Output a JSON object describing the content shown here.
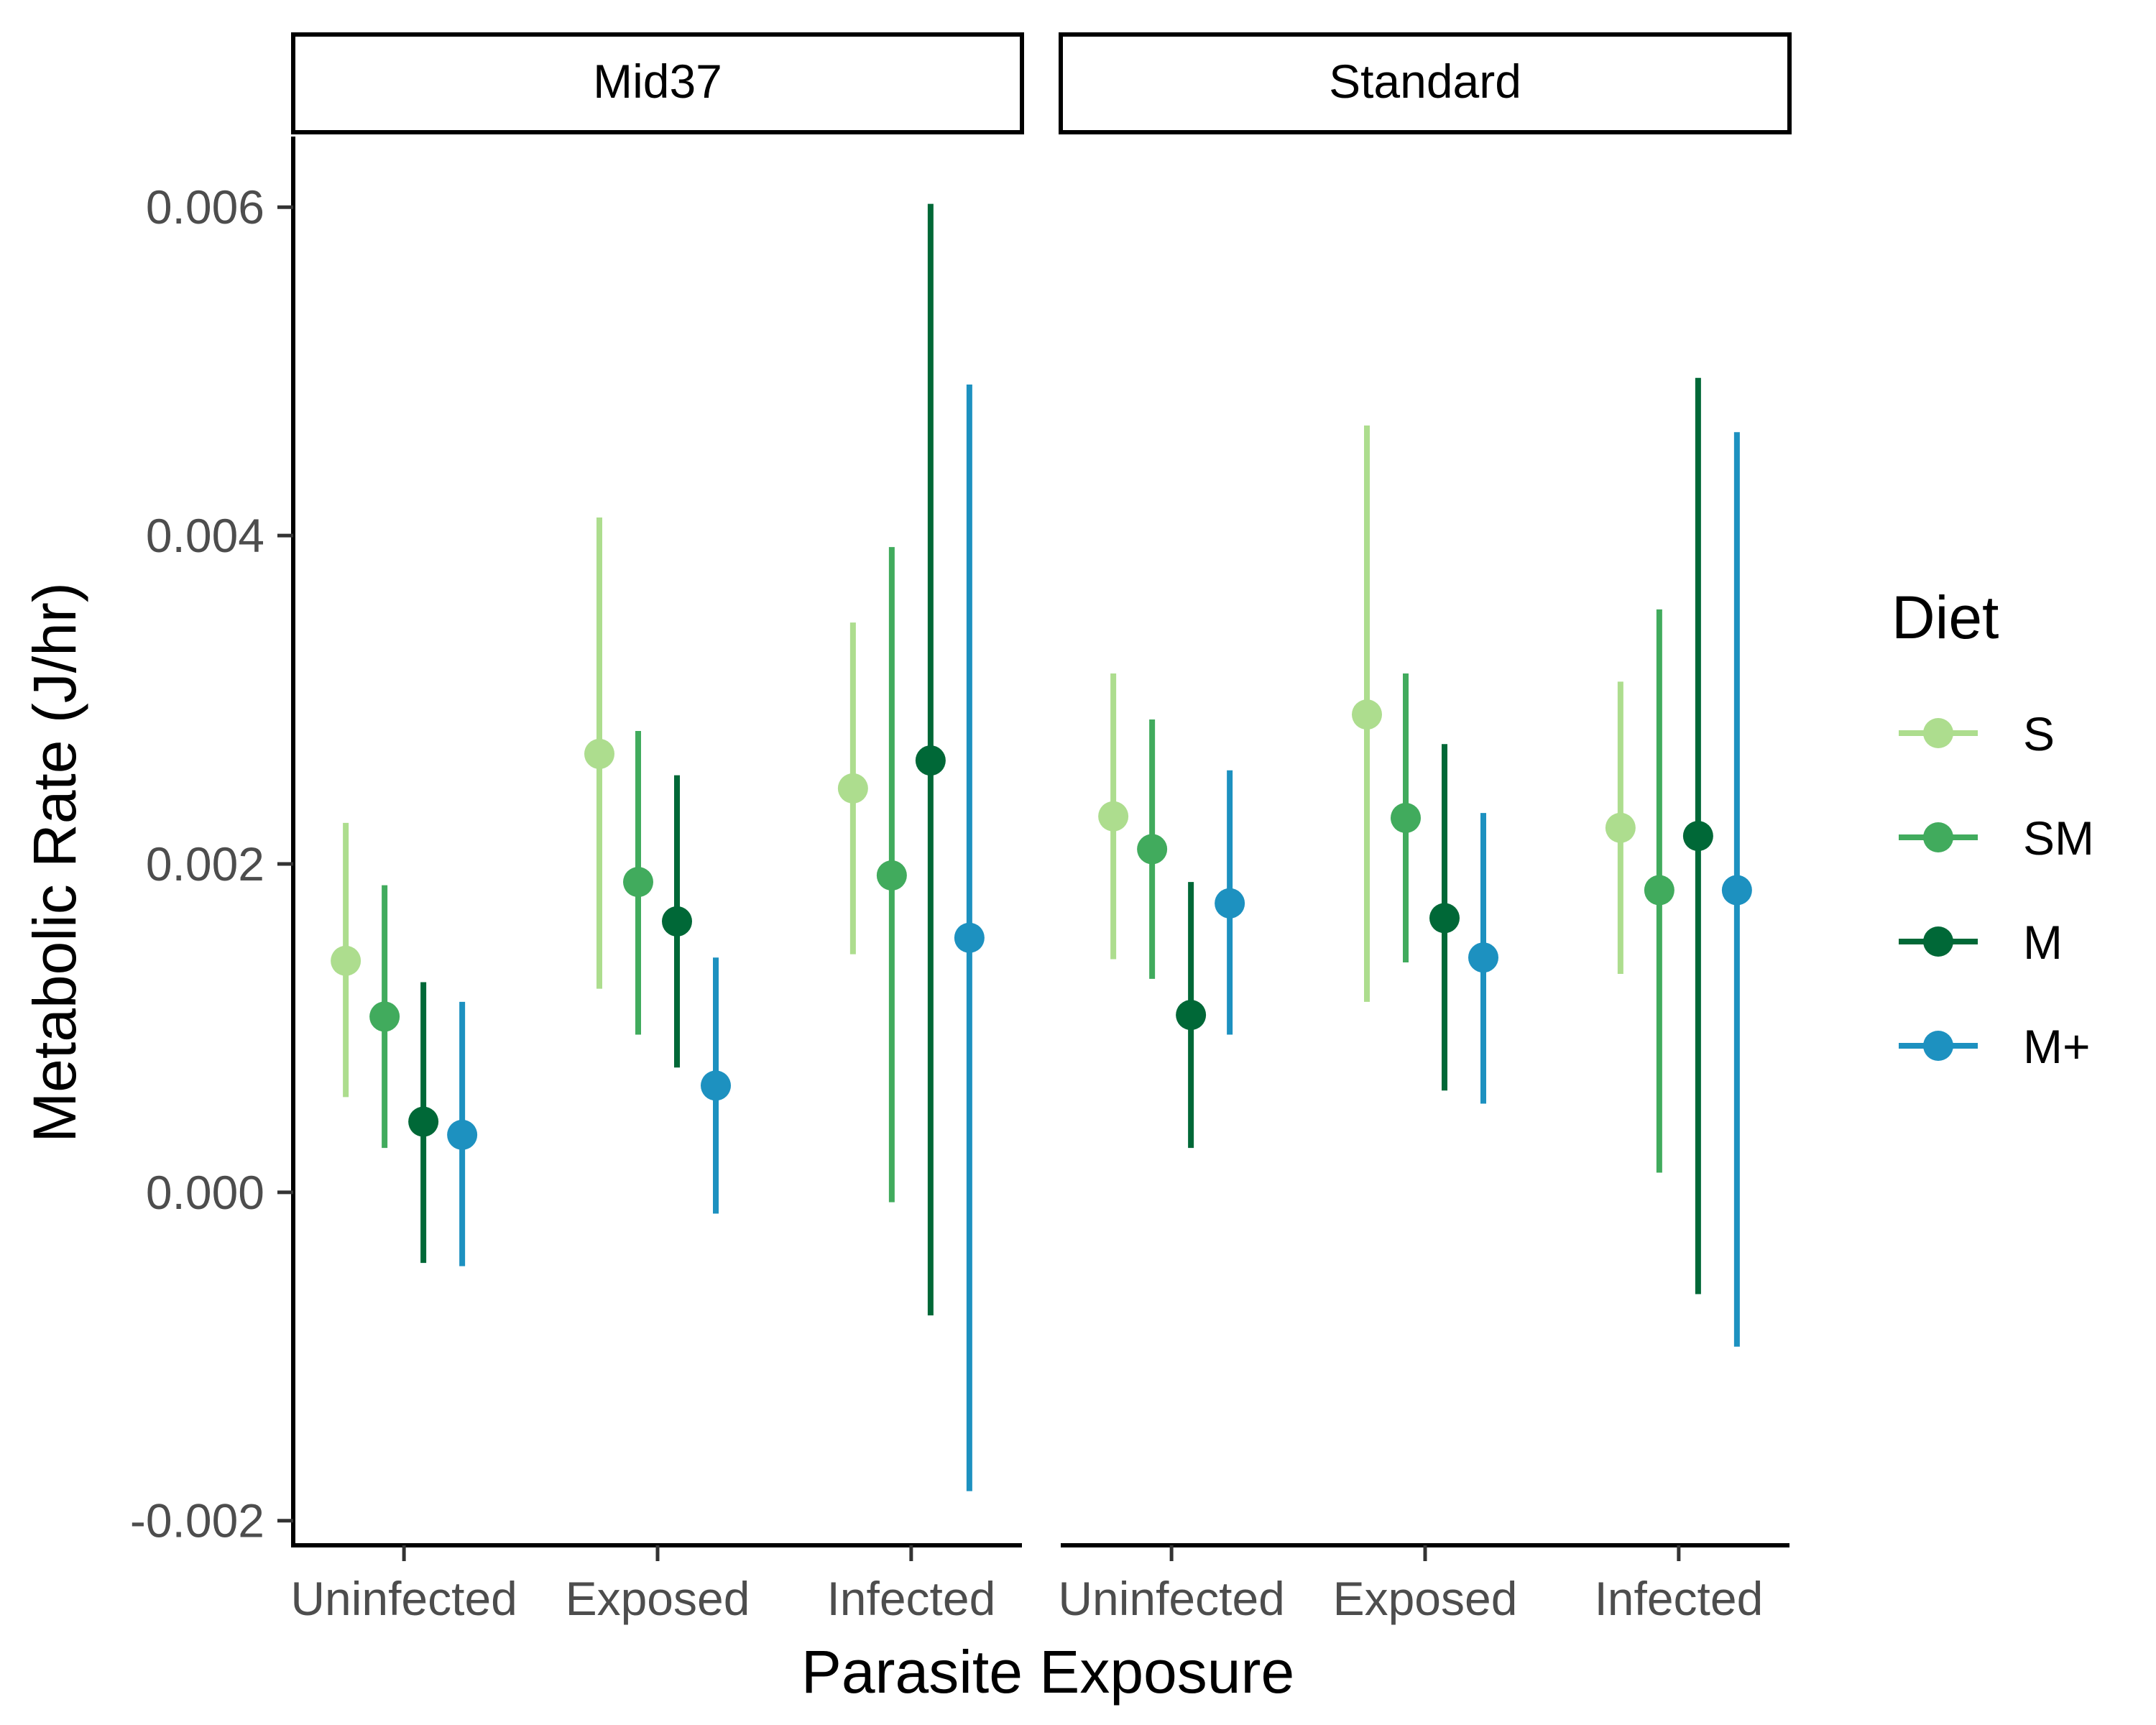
{
  "chart_data": {
    "type": "pointrange",
    "facets": [
      "Mid37",
      "Standard"
    ],
    "categories": [
      "Uninfected",
      "Exposed",
      "Infected"
    ],
    "xlabel": "Parasite Exposure",
    "ylabel": "Metabolic Rate (J/hr)",
    "ylim": [
      -0.00215,
      0.00643
    ],
    "yticks": [
      "-0.002",
      "0.000",
      "0.002",
      "0.004",
      "0.006"
    ],
    "ytick_values": [
      -0.002,
      0,
      0.002,
      0.004,
      0.006
    ],
    "legend": {
      "title": "Diet",
      "position": "right"
    },
    "series": [
      {
        "name": "S",
        "color": "#addd8e",
        "values": {
          "Mid37": [
            {
              "y": 0.00141,
              "lo": 0.00058,
              "hi": 0.00225
            },
            {
              "y": 0.00267,
              "lo": 0.00124,
              "hi": 0.00411
            },
            {
              "y": 0.00246,
              "lo": 0.00145,
              "hi": 0.00347
            }
          ],
          "Standard": [
            {
              "y": 0.00229,
              "lo": 0.00142,
              "hi": 0.00316
            },
            {
              "y": 0.00291,
              "lo": 0.00116,
              "hi": 0.00467
            },
            {
              "y": 0.00222,
              "lo": 0.00133,
              "hi": 0.00311
            }
          ]
        }
      },
      {
        "name": "SM",
        "color": "#41ab5d",
        "values": {
          "Mid37": [
            {
              "y": 0.00107,
              "lo": 0.00027,
              "hi": 0.00187
            },
            {
              "y": 0.00189,
              "lo": 0.00096,
              "hi": 0.00281
            },
            {
              "y": 0.00193,
              "lo": -6e-05,
              "hi": 0.00393
            }
          ],
          "Standard": [
            {
              "y": 0.00209,
              "lo": 0.0013,
              "hi": 0.00288
            },
            {
              "y": 0.00228,
              "lo": 0.0014,
              "hi": 0.00316
            },
            {
              "y": 0.00184,
              "lo": 0.00012,
              "hi": 0.00355
            }
          ]
        }
      },
      {
        "name": "M",
        "color": "#006837",
        "values": {
          "Mid37": [
            {
              "y": 0.00043,
              "lo": -0.00043,
              "hi": 0.00128
            },
            {
              "y": 0.00165,
              "lo": 0.00076,
              "hi": 0.00254
            },
            {
              "y": 0.00263,
              "lo": -0.00075,
              "hi": 0.00602
            }
          ],
          "Standard": [
            {
              "y": 0.00108,
              "lo": 0.00027,
              "hi": 0.00189
            },
            {
              "y": 0.00167,
              "lo": 0.00062,
              "hi": 0.00273
            },
            {
              "y": 0.00217,
              "lo": -0.00062,
              "hi": 0.00496
            }
          ]
        }
      },
      {
        "name": "M+",
        "color": "#1d91c0",
        "values": {
          "Mid37": [
            {
              "y": 0.00035,
              "lo": -0.00045,
              "hi": 0.00116
            },
            {
              "y": 0.00065,
              "lo": -0.00013,
              "hi": 0.00143
            },
            {
              "y": 0.00155,
              "lo": -0.00182,
              "hi": 0.00492
            }
          ],
          "Standard": [
            {
              "y": 0.00176,
              "lo": 0.00096,
              "hi": 0.00257
            },
            {
              "y": 0.00143,
              "lo": 0.00054,
              "hi": 0.00231
            },
            {
              "y": 0.00184,
              "lo": -0.00094,
              "hi": 0.00463
            }
          ]
        }
      }
    ]
  }
}
